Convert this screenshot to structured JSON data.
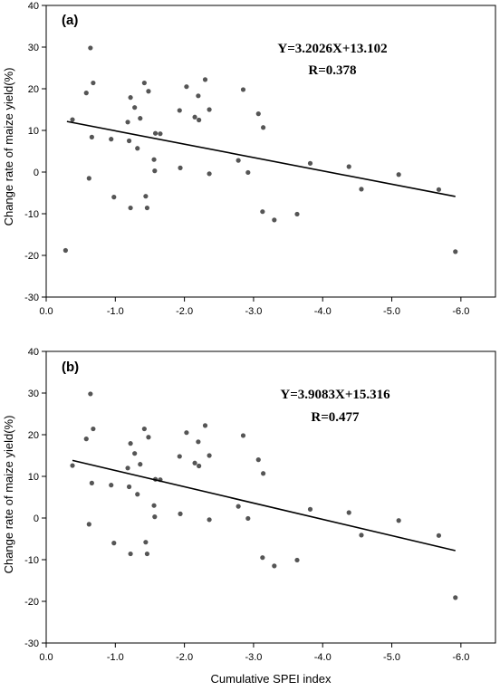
{
  "chart_data": [
    {
      "type": "scatter",
      "panel_label": "(a)",
      "equation": "Y=3.2026X+13.102",
      "r_text": "R=0.378",
      "title": "",
      "xlabel": "",
      "ylabel": "Change rate of maize yield(%)",
      "xlim": [
        0.0,
        -6.5
      ],
      "ylim": [
        -30,
        40
      ],
      "x_ticks": [
        0.0,
        -1.0,
        -2.0,
        -3.0,
        -4.0,
        -5.0,
        -6.0
      ],
      "x_tick_labels": [
        "0.0",
        "-1.0",
        "-2.0",
        "-3.0",
        "-4.0",
        "-5.0",
        "-6.0"
      ],
      "y_ticks": [
        -30,
        -20,
        -10,
        0,
        10,
        20,
        30,
        40
      ],
      "y_tick_labels": [
        "-30",
        "-20",
        "-10",
        "0",
        "10",
        "20",
        "30",
        "40"
      ],
      "trend": {
        "slope": 3.2026,
        "intercept": 13.102,
        "x_range": [
          -0.3,
          -5.92
        ]
      },
      "points": [
        [
          -0.28,
          -18.8
        ],
        [
          -0.38,
          12.6
        ],
        [
          -0.58,
          19.0
        ],
        [
          -0.62,
          -1.5
        ],
        [
          -0.64,
          29.8
        ],
        [
          -0.66,
          8.4
        ],
        [
          -0.68,
          21.4
        ],
        [
          -0.94,
          7.9
        ],
        [
          -0.98,
          -6.0
        ],
        [
          -1.18,
          12.0
        ],
        [
          -1.2,
          7.5
        ],
        [
          -1.22,
          17.9
        ],
        [
          -1.22,
          -8.6
        ],
        [
          -1.28,
          15.5
        ],
        [
          -1.32,
          5.7
        ],
        [
          -1.36,
          12.9
        ],
        [
          -1.42,
          21.4
        ],
        [
          -1.44,
          -5.8
        ],
        [
          -1.46,
          -8.6
        ],
        [
          -1.48,
          19.4
        ],
        [
          -1.56,
          3.0
        ],
        [
          -1.57,
          0.3
        ],
        [
          -1.58,
          9.3
        ],
        [
          -1.65,
          9.2
        ],
        [
          -1.93,
          14.8
        ],
        [
          -1.94,
          1.0
        ],
        [
          -2.03,
          20.5
        ],
        [
          -2.15,
          13.2
        ],
        [
          -2.2,
          18.3
        ],
        [
          -2.21,
          12.5
        ],
        [
          -2.3,
          22.2
        ],
        [
          -2.36,
          15.0
        ],
        [
          -2.36,
          -0.4
        ],
        [
          -2.78,
          2.8
        ],
        [
          -2.85,
          19.8
        ],
        [
          -2.92,
          -0.1
        ],
        [
          -3.07,
          14.0
        ],
        [
          -3.13,
          -9.5
        ],
        [
          -3.14,
          10.7
        ],
        [
          -3.3,
          -11.5
        ],
        [
          -3.63,
          -10.1
        ],
        [
          -3.82,
          2.1
        ],
        [
          -4.38,
          1.3
        ],
        [
          -4.56,
          -4.1
        ],
        [
          -5.1,
          -0.6
        ],
        [
          -5.68,
          -4.2
        ],
        [
          -5.92,
          -19.1
        ]
      ]
    },
    {
      "type": "scatter",
      "panel_label": "(b)",
      "equation": "Y=3.9083X+15.316",
      "r_text": "R=0.477",
      "title": "",
      "xlabel": "Cumulative SPEI index",
      "ylabel": "Change rate of maize yield(%)",
      "xlim": [
        0.0,
        -6.5
      ],
      "ylim": [
        -30,
        40
      ],
      "x_ticks": [
        0.0,
        -1.0,
        -2.0,
        -3.0,
        -4.0,
        -5.0,
        -6.0
      ],
      "x_tick_labels": [
        "0.0",
        "-1.0",
        "-2.0",
        "-3.0",
        "-4.0",
        "-5.0",
        "-6.0"
      ],
      "y_ticks": [
        -30,
        -20,
        -10,
        0,
        10,
        20,
        30,
        40
      ],
      "y_tick_labels": [
        "-30",
        "-20",
        "-10",
        "0",
        "10",
        "20",
        "30",
        "40"
      ],
      "trend": {
        "slope": 3.9083,
        "intercept": 15.316,
        "x_range": [
          -0.38,
          -5.92
        ]
      },
      "points": [
        [
          -0.38,
          12.6
        ],
        [
          -0.58,
          19.0
        ],
        [
          -0.62,
          -1.5
        ],
        [
          -0.64,
          29.8
        ],
        [
          -0.66,
          8.4
        ],
        [
          -0.68,
          21.4
        ],
        [
          -0.94,
          7.9
        ],
        [
          -0.98,
          -6.0
        ],
        [
          -1.18,
          12.0
        ],
        [
          -1.2,
          7.5
        ],
        [
          -1.22,
          17.9
        ],
        [
          -1.22,
          -8.6
        ],
        [
          -1.28,
          15.5
        ],
        [
          -1.32,
          5.7
        ],
        [
          -1.36,
          12.9
        ],
        [
          -1.42,
          21.4
        ],
        [
          -1.44,
          -5.8
        ],
        [
          -1.46,
          -8.6
        ],
        [
          -1.48,
          19.4
        ],
        [
          -1.56,
          3.0
        ],
        [
          -1.57,
          0.3
        ],
        [
          -1.58,
          9.3
        ],
        [
          -1.65,
          9.2
        ],
        [
          -1.93,
          14.8
        ],
        [
          -1.94,
          1.0
        ],
        [
          -2.03,
          20.5
        ],
        [
          -2.15,
          13.2
        ],
        [
          -2.2,
          18.3
        ],
        [
          -2.21,
          12.5
        ],
        [
          -2.3,
          22.2
        ],
        [
          -2.36,
          15.0
        ],
        [
          -2.36,
          -0.4
        ],
        [
          -2.78,
          2.8
        ],
        [
          -2.85,
          19.8
        ],
        [
          -2.92,
          -0.1
        ],
        [
          -3.07,
          14.0
        ],
        [
          -3.13,
          -9.5
        ],
        [
          -3.14,
          10.7
        ],
        [
          -3.3,
          -11.5
        ],
        [
          -3.63,
          -10.1
        ],
        [
          -3.82,
          2.1
        ],
        [
          -4.38,
          1.3
        ],
        [
          -4.56,
          -4.1
        ],
        [
          -5.1,
          -0.6
        ],
        [
          -5.68,
          -4.2
        ],
        [
          -5.92,
          -19.1
        ]
      ]
    }
  ]
}
